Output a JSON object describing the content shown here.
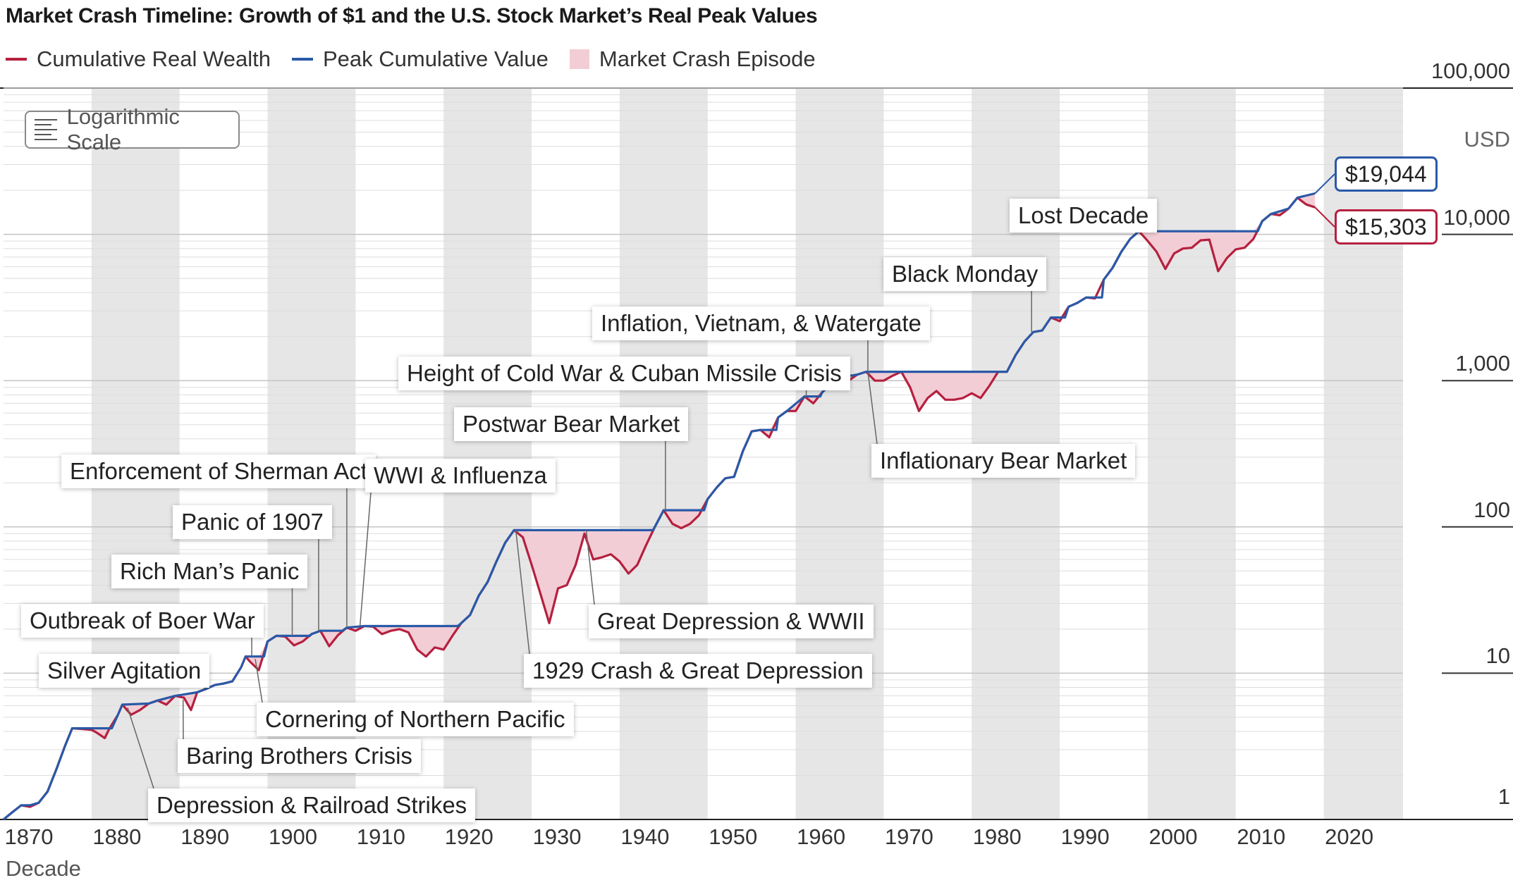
{
  "chart_data": {
    "type": "line",
    "title": "Market Crash Timeline: Growth of $1 and the U.S. Stock Market’s Real Peak Values",
    "xlabel": "Decade",
    "ylabel": "USD",
    "yscale": "log",
    "xlim": [
      1870,
      2029
    ],
    "ylim": [
      1,
      100000
    ],
    "x_ticks": [
      "1870",
      "1880",
      "1890",
      "1900",
      "1910",
      "1920",
      "1930",
      "1940",
      "1950",
      "1960",
      "1970",
      "1980",
      "1990",
      "2000",
      "2010",
      "2020"
    ],
    "y_ticks": [
      "100,000",
      "10,000",
      "1,000",
      "100",
      "10",
      "1"
    ],
    "scale_button": "Logarithmic Scale",
    "legend": [
      {
        "label": "Cumulative Real Wealth",
        "color": "#b5203f"
      },
      {
        "label": "Peak Cumulative Value",
        "color": "#2a59a8"
      },
      {
        "label": "Market Crash Episode",
        "color": "#f3cdd5"
      }
    ],
    "series": [
      {
        "name": "Cumulative Real Wealth",
        "color": "#b5203f",
        "points": [
          [
            1870,
            1.0
          ],
          [
            1871,
            1.12
          ],
          [
            1872,
            1.25
          ],
          [
            1873,
            1.22
          ],
          [
            1874,
            1.3
          ],
          [
            1875,
            1.55
          ],
          [
            1876,
            2.2
          ],
          [
            1877,
            3.2
          ],
          [
            1877.8,
            4.2
          ],
          [
            1879,
            4.15
          ],
          [
            1880,
            4.1
          ],
          [
            1880.5,
            3.95
          ],
          [
            1881.5,
            3.6
          ],
          [
            1882,
            4.15
          ],
          [
            1883,
            5.2
          ],
          [
            1883.5,
            6.1
          ],
          [
            1884.5,
            5.2
          ],
          [
            1885.5,
            5.6
          ],
          [
            1886.5,
            6.2
          ],
          [
            1887.5,
            6.5
          ],
          [
            1888.5,
            6.1
          ],
          [
            1889.5,
            7.0
          ],
          [
            1890.5,
            6.8
          ],
          [
            1891.3,
            5.6
          ],
          [
            1892,
            7.4
          ],
          [
            1893,
            7.8
          ],
          [
            1894,
            8.3
          ],
          [
            1895,
            8.5
          ],
          [
            1896,
            8.8
          ],
          [
            1897,
            11.0
          ],
          [
            1897.5,
            13.0
          ],
          [
            1898,
            12.0
          ],
          [
            1899,
            10.5
          ],
          [
            1900,
            16.5
          ],
          [
            1901,
            18.0
          ],
          [
            1902,
            17.8
          ],
          [
            1903,
            15.5
          ],
          [
            1904,
            16.5
          ],
          [
            1905,
            18.5
          ],
          [
            1906,
            19.5
          ],
          [
            1907,
            15.3
          ],
          [
            1908,
            18.2
          ],
          [
            1909,
            20.5
          ],
          [
            1910,
            19.5
          ],
          [
            1911,
            21.0
          ],
          [
            1912,
            20.8
          ],
          [
            1913,
            18.5
          ],
          [
            1914,
            19.5
          ],
          [
            1915,
            20.0
          ],
          [
            1916,
            19.0
          ],
          [
            1917,
            14.5
          ],
          [
            1918,
            13.0
          ],
          [
            1919,
            15.0
          ],
          [
            1920,
            14.5
          ],
          [
            1921,
            18.0
          ],
          [
            1922,
            22.0
          ],
          [
            1923,
            25.0
          ],
          [
            1924,
            34.0
          ],
          [
            1925,
            42.0
          ],
          [
            1926,
            58.0
          ],
          [
            1927,
            78.0
          ],
          [
            1928,
            95.0
          ],
          [
            1929,
            85.0
          ],
          [
            1930,
            55.0
          ],
          [
            1931,
            35.0
          ],
          [
            1932,
            22.0
          ],
          [
            1933,
            38.0
          ],
          [
            1934,
            40.0
          ],
          [
            1935,
            55.0
          ],
          [
            1936,
            90.0
          ],
          [
            1937,
            60.0
          ],
          [
            1938,
            62.0
          ],
          [
            1939,
            65.0
          ],
          [
            1940,
            58.0
          ],
          [
            1941,
            48.0
          ],
          [
            1942,
            55.0
          ],
          [
            1943,
            75.0
          ],
          [
            1944,
            100.0
          ],
          [
            1945,
            130.0
          ],
          [
            1946,
            105.0
          ],
          [
            1947,
            98.0
          ],
          [
            1948,
            105.0
          ],
          [
            1949,
            120.0
          ],
          [
            1950,
            155.0
          ],
          [
            1951,
            185.0
          ],
          [
            1952,
            215.0
          ],
          [
            1953,
            220.0
          ],
          [
            1954,
            330.0
          ],
          [
            1955,
            450.0
          ],
          [
            1956,
            460.0
          ],
          [
            1957,
            410.0
          ],
          [
            1958,
            560.0
          ],
          [
            1959,
            620.0
          ],
          [
            1960,
            620.0
          ],
          [
            1961,
            780.0
          ],
          [
            1962,
            700.0
          ],
          [
            1963,
            830.0
          ],
          [
            1964,
            950.0
          ],
          [
            1965,
            1050.0
          ],
          [
            1966,
            1000.0
          ],
          [
            1967,
            1100.0
          ],
          [
            1968,
            1150.0
          ],
          [
            1969,
            1000.0
          ],
          [
            1970,
            1000.0
          ],
          [
            1971,
            1080.0
          ],
          [
            1972,
            1150.0
          ],
          [
            1973,
            900.0
          ],
          [
            1974,
            620.0
          ],
          [
            1975,
            760.0
          ],
          [
            1976,
            850.0
          ],
          [
            1977,
            740.0
          ],
          [
            1978,
            740.0
          ],
          [
            1979,
            760.0
          ],
          [
            1980,
            820.0
          ],
          [
            1981,
            760.0
          ],
          [
            1982,
            920.0
          ],
          [
            1983,
            1150.0
          ],
          [
            1984,
            1150.0
          ],
          [
            1985,
            1500.0
          ],
          [
            1986,
            1850.0
          ],
          [
            1987,
            2150.0
          ],
          [
            1988,
            2200.0
          ],
          [
            1989,
            2700.0
          ],
          [
            1990,
            2550.0
          ],
          [
            1991,
            3200.0
          ],
          [
            1992,
            3400.0
          ],
          [
            1993,
            3700.0
          ],
          [
            1994,
            3650.0
          ],
          [
            1995,
            4900.0
          ],
          [
            1996,
            5900.0
          ],
          [
            1997,
            7600.0
          ],
          [
            1998,
            9300.0
          ],
          [
            1999,
            10500.0
          ],
          [
            2000,
            9000.0
          ],
          [
            2001,
            7600.0
          ],
          [
            2002,
            5800.0
          ],
          [
            2003,
            7400.0
          ],
          [
            2004,
            8000.0
          ],
          [
            2005,
            8100.0
          ],
          [
            2006,
            9100.0
          ],
          [
            2007,
            9200.0
          ],
          [
            2008,
            5600.0
          ],
          [
            2009,
            6900.0
          ],
          [
            2010,
            7900.0
          ],
          [
            2011,
            8100.0
          ],
          [
            2012,
            9300.0
          ],
          [
            2013,
            12300.0
          ],
          [
            2014,
            13800.0
          ],
          [
            2015,
            13500.0
          ],
          [
            2016,
            15000.0
          ],
          [
            2017,
            17800.0
          ],
          [
            2018,
            16000.0
          ],
          [
            2019,
            15303.0
          ]
        ]
      },
      {
        "name": "Peak Cumulative Value",
        "color": "#2a59a8",
        "points": [
          [
            1870,
            1.0
          ],
          [
            1871,
            1.12
          ],
          [
            1872,
            1.25
          ],
          [
            1873,
            1.25
          ],
          [
            1874,
            1.3
          ],
          [
            1875,
            1.55
          ],
          [
            1876,
            2.2
          ],
          [
            1877,
            3.2
          ],
          [
            1877.8,
            4.2
          ],
          [
            1882.3,
            4.2
          ],
          [
            1883,
            5.2
          ],
          [
            1883.5,
            6.1
          ],
          [
            1886.5,
            6.2
          ],
          [
            1887.5,
            6.5
          ],
          [
            1889.5,
            7.0
          ],
          [
            1892,
            7.4
          ],
          [
            1893,
            7.8
          ],
          [
            1894,
            8.3
          ],
          [
            1895,
            8.5
          ],
          [
            1896,
            8.8
          ],
          [
            1897,
            11.0
          ],
          [
            1897.5,
            13.0
          ],
          [
            1899.6,
            13.0
          ],
          [
            1900,
            16.5
          ],
          [
            1901,
            18.0
          ],
          [
            1904.8,
            18.0
          ],
          [
            1905,
            18.5
          ],
          [
            1906,
            19.5
          ],
          [
            1908.5,
            19.5
          ],
          [
            1909,
            20.5
          ],
          [
            1911,
            21.0
          ],
          [
            1921.6,
            21.0
          ],
          [
            1922,
            22.0
          ],
          [
            1923,
            25.0
          ],
          [
            1924,
            34.0
          ],
          [
            1925,
            42.0
          ],
          [
            1926,
            58.0
          ],
          [
            1927,
            78.0
          ],
          [
            1928,
            95.0
          ],
          [
            1935.8,
            95.0
          ],
          [
            1936,
            95.0
          ],
          [
            1943.8,
            95.0
          ],
          [
            1944,
            100.0
          ],
          [
            1945,
            130.0
          ],
          [
            1949.6,
            130.0
          ],
          [
            1950,
            155.0
          ],
          [
            1951,
            185.0
          ],
          [
            1952,
            215.0
          ],
          [
            1953,
            220.0
          ],
          [
            1954,
            330.0
          ],
          [
            1955,
            450.0
          ],
          [
            1956,
            460.0
          ],
          [
            1957.8,
            460.0
          ],
          [
            1958,
            560.0
          ],
          [
            1959,
            620.0
          ],
          [
            1961,
            780.0
          ],
          [
            1962.8,
            780.0
          ],
          [
            1963,
            830.0
          ],
          [
            1964,
            950.0
          ],
          [
            1965,
            1050.0
          ],
          [
            1967,
            1100.0
          ],
          [
            1968,
            1150.0
          ],
          [
            1972,
            1150.0
          ],
          [
            1983,
            1150.0
          ],
          [
            1984,
            1150.0
          ],
          [
            1985,
            1500.0
          ],
          [
            1986,
            1850.0
          ],
          [
            1987,
            2150.0
          ],
          [
            1988,
            2200.0
          ],
          [
            1989,
            2700.0
          ],
          [
            1990.6,
            2700.0
          ],
          [
            1991,
            3200.0
          ],
          [
            1992,
            3400.0
          ],
          [
            1993,
            3700.0
          ],
          [
            1994.8,
            3700.0
          ],
          [
            1995,
            4900.0
          ],
          [
            1996,
            5900.0
          ],
          [
            1997,
            7600.0
          ],
          [
            1998,
            9300.0
          ],
          [
            1999,
            10500.0
          ],
          [
            2012.5,
            10500.0
          ],
          [
            2013,
            12300.0
          ],
          [
            2014,
            13800.0
          ],
          [
            2016,
            15000.0
          ],
          [
            2017,
            17800.0
          ],
          [
            2019,
            19044.0
          ]
        ]
      }
    ],
    "shaded_decades": [
      1880,
      1900,
      1920,
      1940,
      1960,
      1980,
      2000,
      2020
    ],
    "annotations": [
      {
        "label": "Silver Agitation",
        "year": 1893.2,
        "value": 8.0
      },
      {
        "label": "Outbreak of Boer War",
        "year": 1898.2,
        "value": 13.0
      },
      {
        "label": "Rich Man’s Panic",
        "year": 1902.8,
        "value": 18.0
      },
      {
        "label": "Panic of 1907",
        "year": 1905.8,
        "value": 19.5
      },
      {
        "label": "Enforcement of Sherman Act",
        "year": 1909.0,
        "value": 20.5
      },
      {
        "label": "WWI & Influenza",
        "year": 1910.5,
        "value": 21.0
      },
      {
        "label": "Cornering of Northern Pacific",
        "year": 1898.6,
        "value": 12.5
      },
      {
        "label": "Baring Brothers Crisis",
        "year": 1890.4,
        "value": 6.6
      },
      {
        "label": "Depression & Railroad Strikes",
        "year": 1884.1,
        "value": 5.8
      },
      {
        "label": "1929 Crash & Great Depression",
        "year": 1928.2,
        "value": 95.0
      },
      {
        "label": "Great Depression & WWII",
        "year": 1936.2,
        "value": 95.0
      },
      {
        "label": "Postwar Bear Market",
        "year": 1945.2,
        "value": 130.0
      },
      {
        "label": "Height of Cold War & Cuban Missile Crisis",
        "year": 1961.2,
        "value": 780.0
      },
      {
        "label": "Inflation, Vietnam, & Watergate",
        "year": 1968.2,
        "value": 1150.0
      },
      {
        "label": "Inflationary Bear Market",
        "year": 1968.2,
        "value": 1150.0
      },
      {
        "label": "Black Monday",
        "year": 1986.8,
        "value": 2150.0
      },
      {
        "label": "Lost Decade",
        "year": 1999.0,
        "value": 10500.0
      }
    ],
    "end_labels": [
      {
        "label": "$19,044",
        "series": "Peak Cumulative Value",
        "color": "#2a59a8"
      },
      {
        "label": "$15,303",
        "series": "Cumulative Real Wealth",
        "color": "#b5203f"
      }
    ]
  }
}
